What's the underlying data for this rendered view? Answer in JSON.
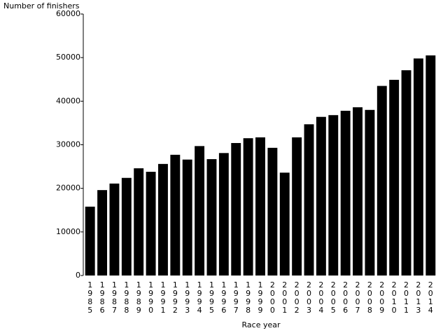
{
  "chart_data": {
    "type": "bar",
    "y_label": "Number of finishers",
    "x_label": "Race year",
    "categories": [
      "1985",
      "1986",
      "1987",
      "1988",
      "1989",
      "1990",
      "1991",
      "1992",
      "1993",
      "1994",
      "1995",
      "1996",
      "1997",
      "1998",
      "1999",
      "2000",
      "2001",
      "2002",
      "2003",
      "2004",
      "2005",
      "2006",
      "2007",
      "2008",
      "2009",
      "2010",
      "2011",
      "2013",
      "2014"
    ],
    "values": [
      15800,
      19600,
      21100,
      22400,
      24600,
      23800,
      25600,
      27700,
      26600,
      29700,
      26700,
      28100,
      30400,
      31500,
      31700,
      29300,
      23600,
      31700,
      34700,
      36400,
      36800,
      37800,
      38600,
      38000,
      43500,
      44900,
      47100,
      49800,
      50500
    ],
    "color": "#000000",
    "ylim": [
      0,
      60000
    ],
    "yticks": [
      0,
      10000,
      20000,
      30000,
      40000,
      50000,
      60000
    ]
  }
}
